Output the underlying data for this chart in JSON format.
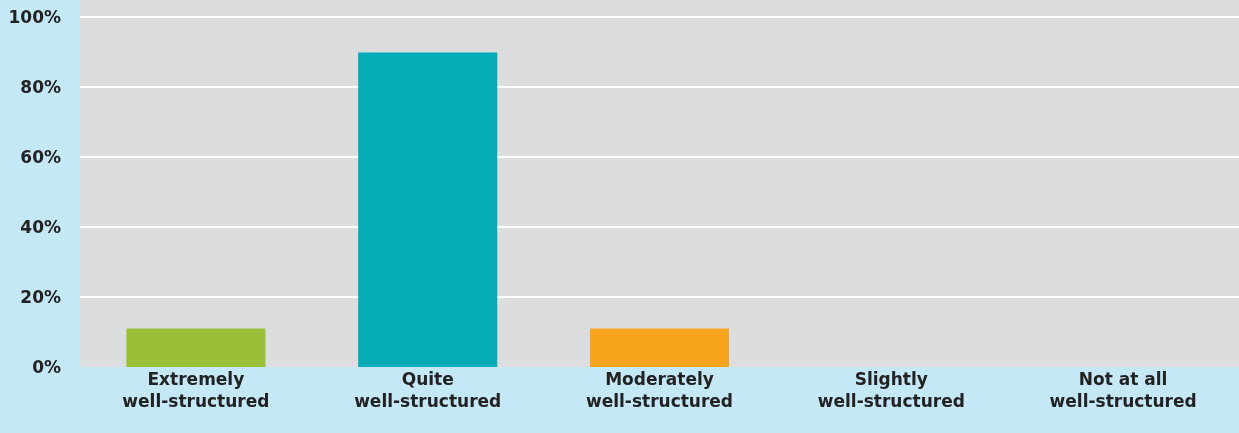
{
  "chart_data": {
    "type": "bar",
    "categories": [
      "Extremely\nwell-structured",
      "Quite\nwell-structured",
      "Moderately\nwell-structured",
      "Slightly\nwell-structured",
      "Not at all\nwell-structured"
    ],
    "values": [
      11,
      90,
      11,
      0,
      0
    ],
    "colors": [
      "#9bbf38",
      "#03acb7",
      "#f7a51d",
      "#9bbf38",
      "#9bbf38"
    ],
    "ylim": [
      0,
      105
    ],
    "yticks": [
      {
        "value": 0,
        "label": "0%"
      },
      {
        "value": 20,
        "label": "20%"
      },
      {
        "value": 40,
        "label": "40%"
      },
      {
        "value": 60,
        "label": "60%"
      },
      {
        "value": 80,
        "label": "80%"
      },
      {
        "value": 100,
        "label": "100%"
      }
    ],
    "grid": "y"
  }
}
